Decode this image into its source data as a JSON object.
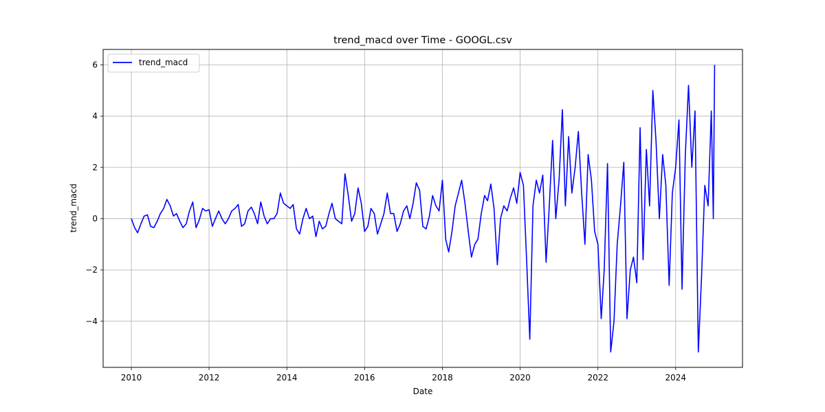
{
  "chart_data": {
    "type": "line",
    "title": "trend_macd over Time - GOOGL.csv",
    "xlabel": "Date",
    "ylabel": "trend_macd",
    "x_ticks": [
      "2010",
      "2012",
      "2014",
      "2016",
      "2018",
      "2020",
      "2022",
      "2024"
    ],
    "y_ticks": [
      "−4",
      "−2",
      "0",
      "2",
      "4",
      "6"
    ],
    "y_tick_values": [
      -4,
      -2,
      0,
      2,
      4,
      6
    ],
    "xlim": [
      "2009-04-11",
      "2025-09-20"
    ],
    "ylim": [
      -5.8,
      6.6
    ],
    "grid": true,
    "legend": "top-left",
    "series": [
      {
        "name": "trend_macd",
        "color": "#0000ff",
        "points": [
          [
            "2010-01-01",
            0.0
          ],
          [
            "2010-02-01",
            -0.35
          ],
          [
            "2010-03-01",
            -0.55
          ],
          [
            "2010-04-01",
            -0.2
          ],
          [
            "2010-05-01",
            0.1
          ],
          [
            "2010-06-01",
            0.15
          ],
          [
            "2010-07-01",
            -0.3
          ],
          [
            "2010-08-01",
            -0.35
          ],
          [
            "2010-09-01",
            -0.1
          ],
          [
            "2010-10-01",
            0.2
          ],
          [
            "2010-11-01",
            0.4
          ],
          [
            "2010-12-01",
            0.75
          ],
          [
            "2011-01-01",
            0.5
          ],
          [
            "2011-02-01",
            0.1
          ],
          [
            "2011-03-01",
            0.2
          ],
          [
            "2011-04-01",
            -0.1
          ],
          [
            "2011-05-01",
            -0.35
          ],
          [
            "2011-06-01",
            -0.2
          ],
          [
            "2011-07-01",
            0.3
          ],
          [
            "2011-08-01",
            0.65
          ],
          [
            "2011-09-01",
            -0.35
          ],
          [
            "2011-10-01",
            -0.05
          ],
          [
            "2011-11-01",
            0.4
          ],
          [
            "2011-12-01",
            0.3
          ],
          [
            "2012-01-01",
            0.35
          ],
          [
            "2012-02-01",
            -0.3
          ],
          [
            "2012-03-01",
            0.0
          ],
          [
            "2012-04-01",
            0.3
          ],
          [
            "2012-05-01",
            0.0
          ],
          [
            "2012-06-01",
            -0.2
          ],
          [
            "2012-07-01",
            0.0
          ],
          [
            "2012-08-01",
            0.3
          ],
          [
            "2012-09-01",
            0.4
          ],
          [
            "2012-10-01",
            0.55
          ],
          [
            "2012-11-01",
            -0.3
          ],
          [
            "2012-12-01",
            -0.2
          ],
          [
            "2013-01-01",
            0.3
          ],
          [
            "2013-02-01",
            0.45
          ],
          [
            "2013-03-01",
            0.2
          ],
          [
            "2013-04-01",
            -0.2
          ],
          [
            "2013-05-01",
            0.65
          ],
          [
            "2013-06-01",
            0.1
          ],
          [
            "2013-07-01",
            -0.2
          ],
          [
            "2013-08-01",
            0.0
          ],
          [
            "2013-09-01",
            0.0
          ],
          [
            "2013-10-01",
            0.2
          ],
          [
            "2013-11-01",
            1.0
          ],
          [
            "2013-12-01",
            0.6
          ],
          [
            "2014-01-01",
            0.5
          ],
          [
            "2014-02-01",
            0.4
          ],
          [
            "2014-03-01",
            0.55
          ],
          [
            "2014-04-01",
            -0.4
          ],
          [
            "2014-05-01",
            -0.6
          ],
          [
            "2014-06-01",
            0.0
          ],
          [
            "2014-07-01",
            0.4
          ],
          [
            "2014-08-01",
            0.0
          ],
          [
            "2014-09-01",
            0.1
          ],
          [
            "2014-10-01",
            -0.7
          ],
          [
            "2014-11-01",
            -0.1
          ],
          [
            "2014-12-01",
            -0.4
          ],
          [
            "2015-01-01",
            -0.3
          ],
          [
            "2015-02-01",
            0.2
          ],
          [
            "2015-03-01",
            0.6
          ],
          [
            "2015-04-01",
            0.0
          ],
          [
            "2015-05-01",
            -0.1
          ],
          [
            "2015-06-01",
            -0.2
          ],
          [
            "2015-07-01",
            1.75
          ],
          [
            "2015-08-01",
            0.9
          ],
          [
            "2015-09-01",
            -0.1
          ],
          [
            "2015-10-01",
            0.2
          ],
          [
            "2015-11-01",
            1.2
          ],
          [
            "2015-12-01",
            0.6
          ],
          [
            "2016-01-01",
            -0.5
          ],
          [
            "2016-02-01",
            -0.3
          ],
          [
            "2016-03-01",
            0.4
          ],
          [
            "2016-04-01",
            0.2
          ],
          [
            "2016-05-01",
            -0.6
          ],
          [
            "2016-06-01",
            -0.2
          ],
          [
            "2016-07-01",
            0.2
          ],
          [
            "2016-08-01",
            1.0
          ],
          [
            "2016-09-01",
            0.2
          ],
          [
            "2016-10-01",
            0.2
          ],
          [
            "2016-11-01",
            -0.5
          ],
          [
            "2016-12-01",
            -0.2
          ],
          [
            "2017-01-01",
            0.3
          ],
          [
            "2017-02-01",
            0.5
          ],
          [
            "2017-03-01",
            0.0
          ],
          [
            "2017-04-01",
            0.6
          ],
          [
            "2017-05-01",
            1.4
          ],
          [
            "2017-06-01",
            1.1
          ],
          [
            "2017-07-01",
            -0.3
          ],
          [
            "2017-08-01",
            -0.4
          ],
          [
            "2017-09-01",
            0.1
          ],
          [
            "2017-10-01",
            0.9
          ],
          [
            "2017-11-01",
            0.5
          ],
          [
            "2017-12-01",
            0.3
          ],
          [
            "2018-01-01",
            1.5
          ],
          [
            "2018-02-01",
            -0.8
          ],
          [
            "2018-03-01",
            -1.3
          ],
          [
            "2018-04-01",
            -0.5
          ],
          [
            "2018-05-01",
            0.5
          ],
          [
            "2018-06-01",
            1.0
          ],
          [
            "2018-07-01",
            1.5
          ],
          [
            "2018-08-01",
            0.6
          ],
          [
            "2018-09-01",
            -0.5
          ],
          [
            "2018-10-01",
            -1.5
          ],
          [
            "2018-11-01",
            -1.0
          ],
          [
            "2018-12-01",
            -0.8
          ],
          [
            "2019-01-01",
            0.2
          ],
          [
            "2019-02-01",
            0.9
          ],
          [
            "2019-03-01",
            0.7
          ],
          [
            "2019-04-01",
            1.35
          ],
          [
            "2019-05-01",
            0.4
          ],
          [
            "2019-06-01",
            -1.8
          ],
          [
            "2019-07-01",
            0.0
          ],
          [
            "2019-08-01",
            0.5
          ],
          [
            "2019-09-01",
            0.3
          ],
          [
            "2019-10-01",
            0.8
          ],
          [
            "2019-11-01",
            1.2
          ],
          [
            "2019-12-01",
            0.6
          ],
          [
            "2020-01-01",
            1.8
          ],
          [
            "2020-02-01",
            1.3
          ],
          [
            "2020-03-01",
            -1.5
          ],
          [
            "2020-04-01",
            -4.7
          ],
          [
            "2020-05-01",
            0.5
          ],
          [
            "2020-06-01",
            1.5
          ],
          [
            "2020-07-01",
            1.0
          ],
          [
            "2020-08-01",
            1.7
          ],
          [
            "2020-09-01",
            -1.7
          ],
          [
            "2020-10-01",
            0.5
          ],
          [
            "2020-11-01",
            3.05
          ],
          [
            "2020-12-01",
            0.0
          ],
          [
            "2021-01-01",
            1.5
          ],
          [
            "2021-02-01",
            4.25
          ],
          [
            "2021-03-01",
            0.5
          ],
          [
            "2021-04-01",
            3.2
          ],
          [
            "2021-05-01",
            1.0
          ],
          [
            "2021-06-01",
            2.0
          ],
          [
            "2021-07-01",
            3.4
          ],
          [
            "2021-08-01",
            1.0
          ],
          [
            "2021-09-01",
            -1.0
          ],
          [
            "2021-10-01",
            2.5
          ],
          [
            "2021-11-01",
            1.5
          ],
          [
            "2021-12-01",
            -0.5
          ],
          [
            "2022-01-01",
            -1.0
          ],
          [
            "2022-02-01",
            -3.9
          ],
          [
            "2022-03-01",
            -2.0
          ],
          [
            "2022-04-01",
            2.15
          ],
          [
            "2022-05-01",
            -5.2
          ],
          [
            "2022-06-01",
            -4.0
          ],
          [
            "2022-07-01",
            -1.0
          ],
          [
            "2022-08-01",
            0.5
          ],
          [
            "2022-09-01",
            2.2
          ],
          [
            "2022-10-01",
            -3.9
          ],
          [
            "2022-11-01",
            -2.0
          ],
          [
            "2022-12-01",
            -1.5
          ],
          [
            "2023-01-01",
            -2.5
          ],
          [
            "2023-02-01",
            3.55
          ],
          [
            "2023-03-01",
            -1.6
          ],
          [
            "2023-04-01",
            2.7
          ],
          [
            "2023-05-01",
            0.5
          ],
          [
            "2023-06-01",
            5.0
          ],
          [
            "2023-07-01",
            3.0
          ],
          [
            "2023-08-01",
            0.0
          ],
          [
            "2023-09-01",
            2.5
          ],
          [
            "2023-10-01",
            1.3
          ],
          [
            "2023-11-01",
            -2.6
          ],
          [
            "2023-12-01",
            1.0
          ],
          [
            "2024-01-01",
            2.0
          ],
          [
            "2024-02-01",
            3.85
          ],
          [
            "2024-03-01",
            -2.75
          ],
          [
            "2024-04-01",
            2.5
          ],
          [
            "2024-05-01",
            5.2
          ],
          [
            "2024-06-01",
            2.0
          ],
          [
            "2024-07-01",
            4.2
          ],
          [
            "2024-08-01",
            -5.2
          ],
          [
            "2024-09-01",
            -2.2
          ],
          [
            "2024-10-01",
            1.3
          ],
          [
            "2024-11-01",
            0.5
          ],
          [
            "2024-12-01",
            4.2
          ],
          [
            "2024-12-20",
            0.0
          ],
          [
            "2025-01-01",
            6.0
          ]
        ]
      }
    ]
  }
}
